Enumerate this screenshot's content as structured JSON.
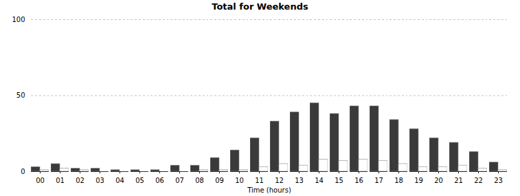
{
  "chart_data": {
    "type": "bar",
    "title": "Total for Weekends",
    "xlabel": "Time (hours)",
    "categories": [
      "00",
      "01",
      "02",
      "03",
      "04",
      "05",
      "06",
      "07",
      "08",
      "09",
      "10",
      "11",
      "12",
      "13",
      "14",
      "15",
      "16",
      "17",
      "18",
      "19",
      "20",
      "21",
      "22",
      "23"
    ],
    "series": [
      {
        "color": "#3a3a3a",
        "values": [
          3,
          5,
          2,
          2,
          1,
          1,
          1,
          4,
          4,
          9,
          14,
          22,
          33,
          39,
          45,
          38,
          43,
          43,
          34,
          28,
          22,
          19,
          13,
          6
        ]
      },
      {
        "color": "#ffffff",
        "values": [
          1,
          2,
          1,
          0,
          0,
          0,
          0,
          0,
          1,
          1,
          1,
          3,
          5,
          4,
          8,
          7,
          8,
          7,
          5,
          3,
          3,
          4,
          2,
          1
        ]
      }
    ],
    "ylim": [
      0,
      100
    ],
    "yticks": [
      0,
      50,
      100
    ],
    "grid": true
  }
}
